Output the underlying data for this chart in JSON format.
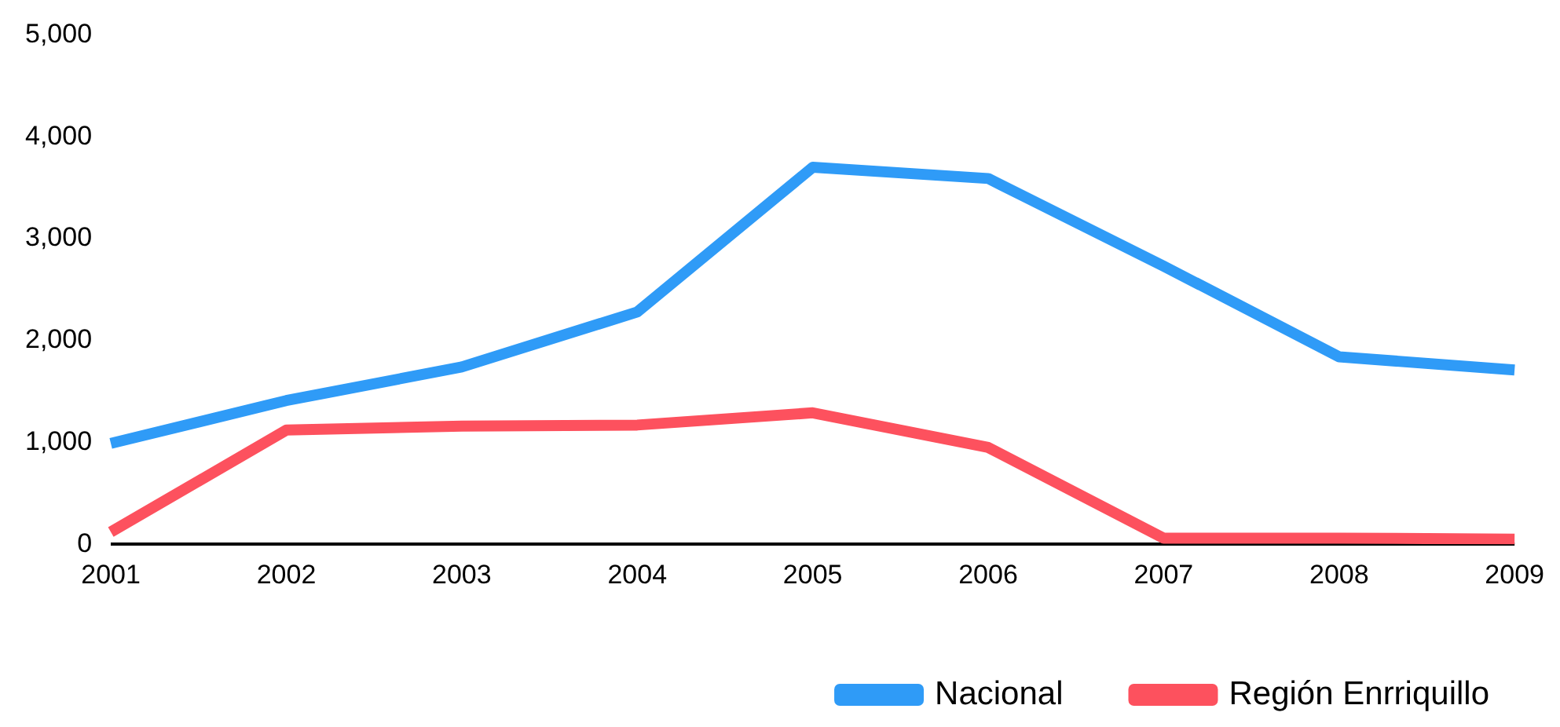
{
  "chart_data": {
    "type": "line",
    "categories": [
      "2001",
      "2002",
      "2003",
      "2004",
      "2005",
      "2006",
      "2007",
      "2008",
      "2009"
    ],
    "series": [
      {
        "name": "Nacional",
        "color": "#2f9bf7",
        "values": [
          990,
          1410,
          1740,
          2280,
          3700,
          3590,
          2730,
          1840,
          1710
        ]
      },
      {
        "name": "Región Enrriquillo",
        "color": "#fd515e",
        "values": [
          120,
          1120,
          1160,
          1170,
          1290,
          950,
          60,
          60,
          50
        ]
      }
    ],
    "ylim": [
      0,
      5000
    ],
    "yticks": [
      0,
      {
        "value": 1000,
        "label": "1,000"
      },
      {
        "value": 2000,
        "label": "2,000"
      },
      {
        "value": 3000,
        "label": "3,000"
      },
      {
        "value": 4000,
        "label": "4,000"
      },
      {
        "value": 5000,
        "label": "5,000"
      }
    ],
    "grid": false,
    "legend": "bottom right",
    "marker": "none",
    "line_style": "solid"
  }
}
